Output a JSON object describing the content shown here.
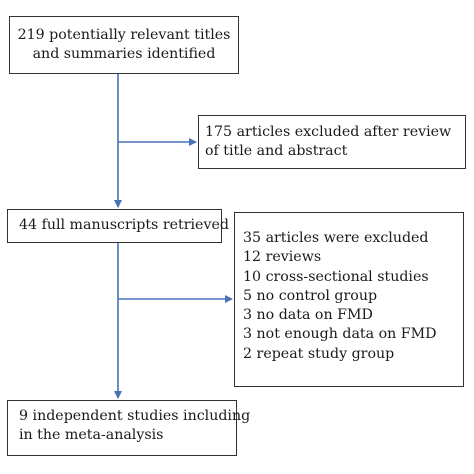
{
  "flow": {
    "identified": {
      "lines": [
        "219 potentially relevant titles",
        "and summaries identified"
      ]
    },
    "excluded_title_abstract": {
      "lines": [
        "175 articles excluded after review",
        "of title and abstract"
      ]
    },
    "retrieved": {
      "lines": [
        "44 full manuscripts retrieved"
      ]
    },
    "excluded_full_text": {
      "lines": [
        "35 articles were excluded",
        "12 reviews",
        "10 cross-sectional studies",
        "5 no control group",
        "3 no data on FMD",
        "3 not enough data on FMD",
        "2 repeat study group"
      ]
    },
    "included": {
      "lines": [
        "9 independent studies including",
        "in the meta-analysis"
      ]
    }
  },
  "colors": {
    "arrow": "#4a72b8",
    "border": "#333333",
    "text": "#1a1a1a"
  }
}
